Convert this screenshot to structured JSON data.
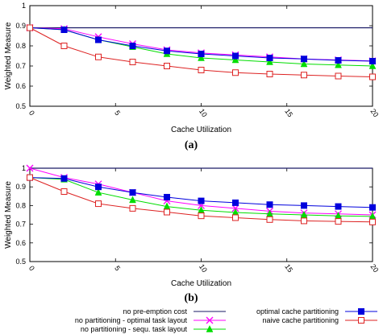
{
  "colors": {
    "no_preemption": "#1a1a66",
    "no_part_optimal": "#ff00ff",
    "no_part_sequ": "#00dd00",
    "optimal_cache": "#0000dd",
    "naive_cache": "#dd2222"
  },
  "chart_data": [
    {
      "type": "line",
      "panel_label": "(a)",
      "xlabel": "Cache Utilization",
      "ylabel": "Weighted Measure",
      "xlim": [
        0,
        20
      ],
      "ylim": [
        0.5,
        1
      ],
      "x_ticks": [
        0,
        5,
        10,
        15,
        20
      ],
      "x_tick_labels": [
        "0",
        "5",
        "10",
        "15",
        "20"
      ],
      "y_ticks": [
        0.5,
        0.6,
        0.7,
        0.8,
        0.9,
        1
      ],
      "y_tick_labels": [
        "0.5",
        "0.6",
        "0.7",
        "0.8",
        "0.9",
        "1"
      ],
      "x": [
        0,
        2,
        4,
        6,
        8,
        10,
        12,
        14,
        16,
        18,
        20
      ],
      "series": [
        {
          "key": "no_preemption",
          "marker": "none",
          "values": [
            0.89,
            0.89,
            0.89,
            0.89,
            0.89,
            0.89,
            0.89,
            0.89,
            0.89,
            0.89,
            0.89
          ]
        },
        {
          "key": "no_part_optimal",
          "marker": "x",
          "values": [
            0.89,
            0.885,
            0.845,
            0.81,
            0.78,
            0.765,
            0.755,
            0.745,
            0.735,
            0.73,
            0.725
          ]
        },
        {
          "key": "no_part_sequ",
          "marker": "triangle",
          "values": [
            0.89,
            0.88,
            0.83,
            0.795,
            0.76,
            0.74,
            0.73,
            0.72,
            0.71,
            0.705,
            0.7
          ]
        },
        {
          "key": "optimal_cache",
          "marker": "square-filled",
          "values": [
            0.89,
            0.88,
            0.83,
            0.8,
            0.775,
            0.76,
            0.75,
            0.74,
            0.735,
            0.728,
            0.724
          ]
        },
        {
          "key": "naive_cache",
          "marker": "square-open",
          "values": [
            0.89,
            0.8,
            0.745,
            0.72,
            0.7,
            0.68,
            0.667,
            0.66,
            0.655,
            0.65,
            0.646
          ]
        }
      ]
    },
    {
      "type": "line",
      "panel_label": "(b)",
      "xlabel": "Cache Utilization",
      "ylabel": "Weighted Measure",
      "xlim": [
        0,
        20
      ],
      "ylim": [
        0.5,
        1
      ],
      "x_ticks": [
        0,
        5,
        10,
        15,
        20
      ],
      "x_tick_labels": [
        "0",
        "5",
        "10",
        "15",
        "20"
      ],
      "y_ticks": [
        0.5,
        0.6,
        0.7,
        0.8,
        0.9,
        1
      ],
      "y_tick_labels": [
        "0.5",
        "0.6",
        "0.7",
        "0.8",
        "0.9",
        "1"
      ],
      "x": [
        0,
        2,
        4,
        6,
        8,
        10,
        12,
        14,
        16,
        18,
        20
      ],
      "series": [
        {
          "key": "no_preemption",
          "marker": "none",
          "values": [
            1,
            1,
            1,
            1,
            1,
            1,
            1,
            1,
            1,
            1,
            1
          ]
        },
        {
          "key": "no_part_optimal",
          "marker": "x",
          "values": [
            1,
            0.95,
            0.915,
            0.87,
            0.825,
            0.8,
            0.785,
            0.77,
            0.76,
            0.755,
            0.75
          ]
        },
        {
          "key": "no_part_sequ",
          "marker": "triangle",
          "values": [
            0.95,
            0.94,
            0.87,
            0.83,
            0.795,
            0.775,
            0.763,
            0.755,
            0.75,
            0.745,
            0.742
          ]
        },
        {
          "key": "optimal_cache",
          "marker": "square-filled",
          "values": [
            0.95,
            0.945,
            0.9,
            0.87,
            0.845,
            0.825,
            0.815,
            0.805,
            0.8,
            0.795,
            0.79
          ]
        },
        {
          "key": "naive_cache",
          "marker": "square-open",
          "values": [
            0.95,
            0.875,
            0.81,
            0.785,
            0.765,
            0.745,
            0.735,
            0.725,
            0.718,
            0.715,
            0.712
          ]
        }
      ]
    }
  ],
  "legend": [
    {
      "key": "no_preemption",
      "label": "no pre-emption cost",
      "marker": "none",
      "column": 0
    },
    {
      "key": "no_part_optimal",
      "label": "no partitioning - optimal task layout",
      "marker": "x",
      "column": 0
    },
    {
      "key": "no_part_sequ",
      "label": "no partitioning - sequ. task layout",
      "marker": "triangle",
      "column": 0
    },
    {
      "key": "optimal_cache",
      "label": "optimal cache partitioning",
      "marker": "square-filled",
      "column": 1
    },
    {
      "key": "naive_cache",
      "label": "naive cache partitioning",
      "marker": "square-open",
      "column": 1
    }
  ]
}
